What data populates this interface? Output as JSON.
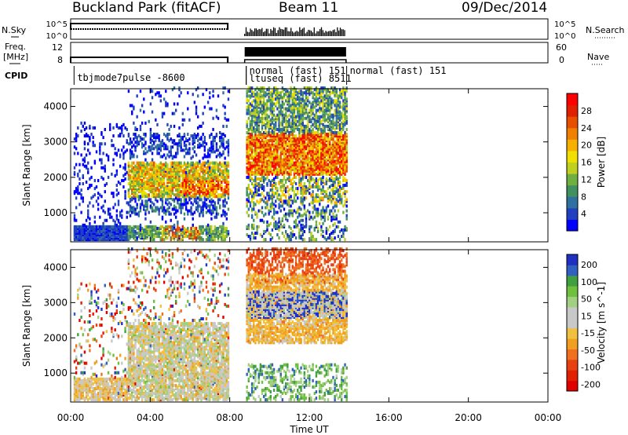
{
  "header": {
    "station": "Buckland Park (fitACF)",
    "beam": "Beam 11",
    "date": "09/Dec/2014"
  },
  "strip_labels": {
    "nsky": "N.Sky",
    "freq_line1": "Freq.",
    "freq_line2": "[MHz]",
    "cpid": "CPID",
    "nsearch": "N.Search",
    "nave": "Nave",
    "nsky_ticks": [
      "10^5",
      "10^0"
    ],
    "nsearch_ticks": [
      "10^5",
      "10^0"
    ],
    "freq_ticks": [
      "12",
      "8"
    ],
    "nave_ticks": [
      "60",
      "0"
    ]
  },
  "cpid_labels": [
    {
      "text": "tbjmode7pulse -8600",
      "t": 0.25
    },
    {
      "text": "normal (fast) 151",
      "t": 8.75
    },
    {
      "text": "ltuseq (fast) 8511",
      "t": 8.75
    },
    {
      "text": "normal (fast) 151",
      "t": 13.8
    }
  ],
  "chart_data": [
    {
      "type": "heatmap",
      "name": "power",
      "ylabel": "Slant Range [km]",
      "xlabel": "Time UT",
      "x_ticks": [
        "00:00",
        "04:00",
        "08:00",
        "12:00",
        "16:00",
        "20:00",
        "00:00"
      ],
      "x_range_hours": [
        0,
        24
      ],
      "y_ticks": [
        "1000",
        "2000",
        "3000",
        "4000"
      ],
      "y_range_km": [
        180,
        4500
      ],
      "colorbar_label": "Power [dB]",
      "colorbar_ticks": [
        "4",
        "8",
        "12",
        "16",
        "20",
        "24",
        "28"
      ],
      "colorbar_colors": [
        "#0000ff",
        "#2040c0",
        "#3070a0",
        "#409060",
        "#70b040",
        "#c0d020",
        "#f0e000",
        "#f8b000",
        "#f08000",
        "#e85000",
        "#e02000",
        "#ff0000"
      ],
      "data_gaps_hours": [
        [
          7.9,
          8.75
        ],
        [
          13.85,
          24
        ]
      ]
    },
    {
      "type": "heatmap",
      "name": "velocity",
      "ylabel": "Slant Range [km]",
      "xlabel": "Time UT",
      "x_ticks": [
        "00:00",
        "04:00",
        "08:00",
        "12:00",
        "16:00",
        "20:00",
        "00:00"
      ],
      "x_range_hours": [
        0,
        24
      ],
      "y_ticks": [
        "1000",
        "2000",
        "3000",
        "4000"
      ],
      "y_range_km": [
        180,
        4500
      ],
      "colorbar_label": "Velocity [m s^-1]",
      "colorbar_ticks": [
        "200",
        "100",
        "50",
        "15",
        "-15",
        "-50",
        "-100",
        "-200"
      ],
      "colorbar_colors": [
        "#2030c0",
        "#3060c0",
        "#40a040",
        "#70c040",
        "#a0d080",
        "#c8c8c8",
        "#c8c8c8",
        "#f0c040",
        "#f0a020",
        "#f07020",
        "#e84010",
        "#e02000",
        "#e00000"
      ]
    }
  ],
  "footer": {
    "xaxis_label": "Time UT"
  },
  "colors": {
    "background": "#ffffff",
    "axis": "#000000"
  }
}
